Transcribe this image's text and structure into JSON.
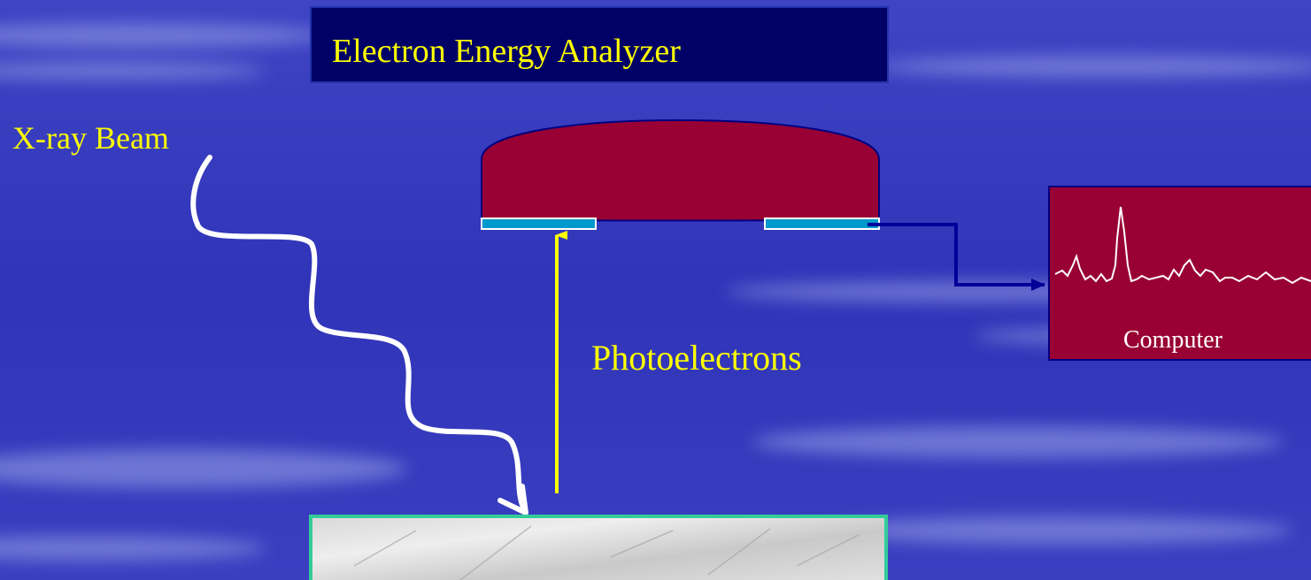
{
  "title": "Electron Energy Analyzer",
  "labels": {
    "beam": "X-ray Beam",
    "electrons": "Photoelectrons",
    "computer": "Computer"
  }
}
